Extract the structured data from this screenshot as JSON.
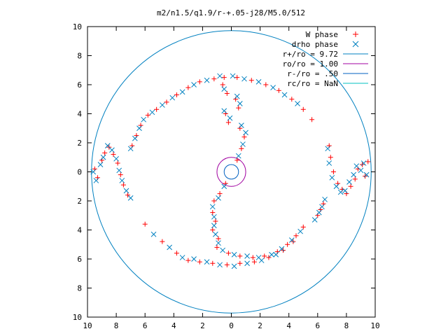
{
  "chart_data": {
    "type": "scatter",
    "title": "m2/n1.5/q1.9/r-+.05-j28/M5.0/512",
    "xlabel": "",
    "ylabel": "",
    "xlim": [
      -10,
      10
    ],
    "ylim": [
      -10,
      10
    ],
    "x_ticks": [
      -10,
      -8,
      -6,
      -4,
      -2,
      0,
      2,
      4,
      6,
      8,
      10
    ],
    "x_tick_labels": [
      "10",
      "8",
      "6",
      "4",
      "2",
      "0",
      "2",
      "4",
      "6",
      "8",
      "10"
    ],
    "y_ticks": [
      -10,
      -8,
      -6,
      -4,
      -2,
      0,
      2,
      4,
      6,
      8,
      10
    ],
    "y_tick_labels": [
      "10",
      "8",
      "6",
      "4",
      "2",
      "0",
      "2",
      "4",
      "6",
      "8",
      "10"
    ],
    "grid": false,
    "legend_position": "top-right",
    "legend": [
      {
        "label": "W phase",
        "kind": "point",
        "marker": "plus",
        "color": "#ff0000"
      },
      {
        "label": "drho phase",
        "kind": "point",
        "marker": "cross",
        "color": "#0080c0"
      },
      {
        "label": "r+/ro = 9.72",
        "kind": "line",
        "color": "#0080c0"
      },
      {
        "label": "ro/ro = 1.00",
        "kind": "line",
        "color": "#a000a0"
      },
      {
        "label": "r-/ro = .50",
        "kind": "line",
        "color": "#0060c0"
      },
      {
        "label": "rc/ro = NaN",
        "kind": "line",
        "color": "#00c0c0"
      }
    ],
    "circles": [
      {
        "name": "r+/ro",
        "radius": 9.72,
        "color": "#0080c0"
      },
      {
        "name": "ro/ro",
        "radius": 1.0,
        "color": "#a000a0"
      },
      {
        "name": "r-/ro",
        "radius": 0.5,
        "color": "#0060c0"
      }
    ],
    "series": [
      {
        "name": "W phase",
        "marker": "plus",
        "color": "#ff0000",
        "points": [
          [
            -9.5,
            0.2
          ],
          [
            -9.3,
            -0.4
          ],
          [
            -9.0,
            0.8
          ],
          [
            -8.8,
            1.3
          ],
          [
            -8.5,
            1.7
          ],
          [
            -8.2,
            1.2
          ],
          [
            -7.9,
            0.6
          ],
          [
            -7.7,
            -0.2
          ],
          [
            -7.5,
            -0.9
          ],
          [
            -7.2,
            -1.6
          ],
          [
            -6.9,
            1.8
          ],
          [
            -6.6,
            2.5
          ],
          [
            -6.3,
            3.2
          ],
          [
            -5.8,
            3.9
          ],
          [
            -5.2,
            4.3
          ],
          [
            -4.5,
            4.8
          ],
          [
            -3.8,
            5.3
          ],
          [
            -3.0,
            5.8
          ],
          [
            -2.2,
            6.2
          ],
          [
            -1.2,
            6.4
          ],
          [
            -0.5,
            6.5
          ],
          [
            0.4,
            6.5
          ],
          [
            1.4,
            6.3
          ],
          [
            2.4,
            6.0
          ],
          [
            3.3,
            5.6
          ],
          [
            4.2,
            5.0
          ],
          [
            5.0,
            4.3
          ],
          [
            5.6,
            3.6
          ],
          [
            -0.6,
            6.0
          ],
          [
            -0.3,
            5.4
          ],
          [
            0.3,
            5.0
          ],
          [
            0.5,
            4.4
          ],
          [
            -0.4,
            4.0
          ],
          [
            -0.2,
            3.4
          ],
          [
            0.6,
            3.0
          ],
          [
            0.9,
            2.4
          ],
          [
            0.7,
            1.6
          ],
          [
            0.4,
            0.8
          ],
          [
            -0.4,
            -0.8
          ],
          [
            -0.8,
            -1.5
          ],
          [
            -1.2,
            -2.0
          ],
          [
            -1.3,
            -2.8
          ],
          [
            -1.1,
            -3.4
          ],
          [
            -1.3,
            -4.0
          ],
          [
            -0.9,
            -4.6
          ],
          [
            -1.0,
            -5.2
          ],
          [
            -0.2,
            -5.6
          ],
          [
            0.6,
            -5.8
          ],
          [
            1.5,
            -5.9
          ],
          [
            2.3,
            -5.8
          ],
          [
            3.2,
            -5.5
          ],
          [
            3.9,
            -5.0
          ],
          [
            4.5,
            -4.4
          ],
          [
            5.0,
            -3.8
          ],
          [
            -2.2,
            -6.2
          ],
          [
            -1.3,
            -6.3
          ],
          [
            -0.3,
            -6.4
          ],
          [
            0.6,
            -6.3
          ],
          [
            1.6,
            -6.2
          ],
          [
            2.6,
            -5.9
          ],
          [
            3.6,
            -5.4
          ],
          [
            4.3,
            -4.8
          ],
          [
            -6.0,
            -3.6
          ],
          [
            -4.8,
            -4.8
          ],
          [
            -3.8,
            -5.6
          ],
          [
            -3.0,
            -6.1
          ],
          [
            6.8,
            1.8
          ],
          [
            6.9,
            1.0
          ],
          [
            7.1,
            0.0
          ],
          [
            7.4,
            -0.8
          ],
          [
            7.7,
            -1.2
          ],
          [
            8.0,
            -1.5
          ],
          [
            8.3,
            -1.0
          ],
          [
            8.6,
            -0.5
          ],
          [
            8.8,
            0.2
          ],
          [
            9.1,
            0.5
          ],
          [
            9.3,
            -0.3
          ],
          [
            9.5,
            0.7
          ],
          [
            6.0,
            -3.0
          ],
          [
            6.2,
            -2.6
          ],
          [
            6.4,
            -2.2
          ]
        ]
      },
      {
        "name": "drho phase",
        "marker": "cross",
        "color": "#0080c0",
        "points": [
          [
            -9.6,
            0.0
          ],
          [
            -9.4,
            -0.6
          ],
          [
            -9.1,
            0.5
          ],
          [
            -8.9,
            1.0
          ],
          [
            -8.6,
            1.8
          ],
          [
            -8.3,
            1.5
          ],
          [
            -8.0,
            0.9
          ],
          [
            -7.8,
            0.1
          ],
          [
            -7.6,
            -0.6
          ],
          [
            -7.3,
            -1.3
          ],
          [
            -7.0,
            -1.8
          ],
          [
            -7.0,
            1.6
          ],
          [
            -6.7,
            2.3
          ],
          [
            -6.4,
            3.0
          ],
          [
            -6.1,
            3.6
          ],
          [
            -5.5,
            4.1
          ],
          [
            -4.8,
            4.6
          ],
          [
            -4.1,
            5.1
          ],
          [
            -3.4,
            5.5
          ],
          [
            -2.6,
            6.0
          ],
          [
            -1.7,
            6.3
          ],
          [
            -0.8,
            6.6
          ],
          [
            0.1,
            6.6
          ],
          [
            0.9,
            6.4
          ],
          [
            1.9,
            6.2
          ],
          [
            2.9,
            5.8
          ],
          [
            3.7,
            5.3
          ],
          [
            4.6,
            4.7
          ],
          [
            -0.5,
            5.7
          ],
          [
            0.4,
            5.2
          ],
          [
            0.6,
            4.7
          ],
          [
            -0.5,
            4.2
          ],
          [
            -0.1,
            3.7
          ],
          [
            0.7,
            3.2
          ],
          [
            1.0,
            2.7
          ],
          [
            0.8,
            1.9
          ],
          [
            0.5,
            1.1
          ],
          [
            -0.5,
            -1.0
          ],
          [
            -0.9,
            -1.8
          ],
          [
            -1.3,
            -2.4
          ],
          [
            -1.2,
            -3.1
          ],
          [
            -1.2,
            -3.7
          ],
          [
            -1.1,
            -4.3
          ],
          [
            -0.9,
            -4.9
          ],
          [
            -0.6,
            -5.4
          ],
          [
            0.2,
            -5.7
          ],
          [
            1.1,
            -5.8
          ],
          [
            1.9,
            -5.9
          ],
          [
            2.8,
            -5.7
          ],
          [
            3.5,
            -5.3
          ],
          [
            4.2,
            -4.7
          ],
          [
            4.8,
            -4.1
          ],
          [
            -2.6,
            -6.0
          ],
          [
            -1.7,
            -6.2
          ],
          [
            -0.8,
            -6.4
          ],
          [
            0.2,
            -6.5
          ],
          [
            1.1,
            -6.3
          ],
          [
            2.1,
            -6.1
          ],
          [
            3.1,
            -5.7
          ],
          [
            -5.4,
            -4.3
          ],
          [
            -4.3,
            -5.2
          ],
          [
            -3.4,
            -5.9
          ],
          [
            6.7,
            1.6
          ],
          [
            6.8,
            0.6
          ],
          [
            7.0,
            -0.4
          ],
          [
            7.3,
            -1.0
          ],
          [
            7.6,
            -1.4
          ],
          [
            7.9,
            -1.3
          ],
          [
            8.2,
            -0.7
          ],
          [
            8.5,
            -0.2
          ],
          [
            8.7,
            0.4
          ],
          [
            9.0,
            0.1
          ],
          [
            9.2,
            0.6
          ],
          [
            9.4,
            -0.2
          ],
          [
            5.8,
            -3.3
          ],
          [
            6.1,
            -2.8
          ],
          [
            6.3,
            -2.4
          ],
          [
            6.5,
            -1.9
          ]
        ]
      }
    ]
  }
}
